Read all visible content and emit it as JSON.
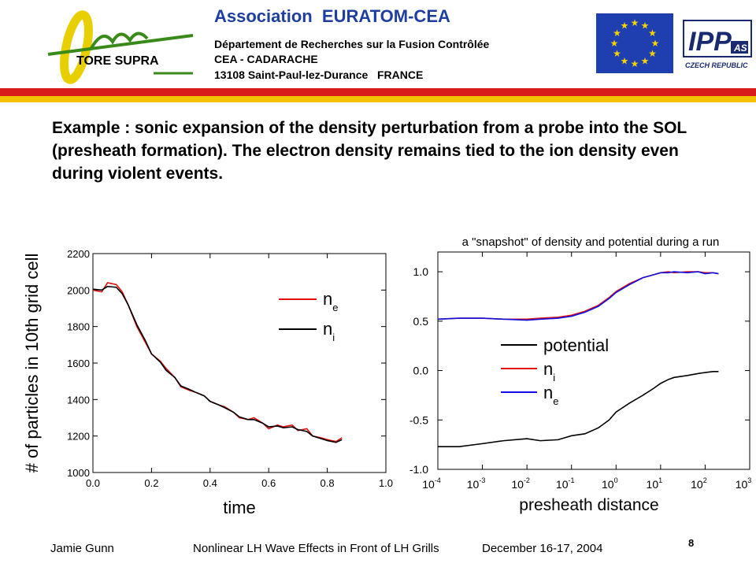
{
  "header": {
    "logo_text": "TORE SUPRA",
    "title": "Association  EURATOM-CEA",
    "line1": "Département de Recherches sur la Fusion Contrôlée",
    "line2": "CEA - CADARACHE",
    "line3": "13108 Saint-Paul-lez-Durance   FRANCE",
    "ipp_logo": "IPP",
    "ipp_sub": "AS",
    "ipp_country": "CZECH REPUBLIC"
  },
  "headline": "Example : sonic expansion of the density perturbation from a probe into the SOL (presheath formation). The electron density remains tied to the ion density even during violent events.",
  "footer": {
    "author": "Jamie Gunn",
    "talk": "Nonlinear LH Wave Effects in Front of LH Grills",
    "date": "December 16-17, 2004",
    "page": "8"
  },
  "colors": {
    "red": "#e01010",
    "black": "#000000",
    "blue": "#1010e0",
    "stripe_red": "#d81c1c",
    "stripe_yellow": "#f2c200",
    "header_blue": "#1f3f9f",
    "logo_green": "#3a8a1a",
    "logo_yellow": "#e8d000"
  },
  "chart_data": [
    {
      "type": "line",
      "xlabel": "time",
      "ylabel": "# of particles in 10th grid cell",
      "xlim": [
        0.0,
        1.0
      ],
      "ylim": [
        1000,
        2200
      ],
      "xticks": [
        "0.0",
        "0.2",
        "0.4",
        "0.6",
        "0.8",
        "1.0"
      ],
      "yticks": [
        "1000",
        "1200",
        "1400",
        "1600",
        "1800",
        "2000",
        "2200"
      ],
      "legend_position": "top-right",
      "series": [
        {
          "name": "n",
          "subscript": "e",
          "color": "red",
          "x": [
            0.0,
            0.03,
            0.05,
            0.08,
            0.1,
            0.12,
            0.15,
            0.18,
            0.2,
            0.23,
            0.25,
            0.28,
            0.3,
            0.33,
            0.35,
            0.38,
            0.4,
            0.43,
            0.45,
            0.48,
            0.5,
            0.53,
            0.55,
            0.58,
            0.6,
            0.63,
            0.65,
            0.68,
            0.7,
            0.73,
            0.75,
            0.78,
            0.8,
            0.83,
            0.85
          ],
          "y": [
            2000,
            1990,
            2040,
            2030,
            1990,
            1920,
            1800,
            1710,
            1650,
            1610,
            1570,
            1520,
            1470,
            1450,
            1440,
            1420,
            1390,
            1370,
            1360,
            1330,
            1300,
            1290,
            1300,
            1270,
            1240,
            1260,
            1250,
            1260,
            1230,
            1240,
            1200,
            1190,
            1180,
            1170,
            1190
          ]
        },
        {
          "name": "n",
          "subscript": "i",
          "color": "black",
          "x": [
            0.0,
            0.03,
            0.05,
            0.08,
            0.1,
            0.12,
            0.15,
            0.18,
            0.2,
            0.23,
            0.25,
            0.28,
            0.3,
            0.33,
            0.35,
            0.38,
            0.4,
            0.43,
            0.45,
            0.48,
            0.5,
            0.53,
            0.55,
            0.58,
            0.6,
            0.63,
            0.65,
            0.68,
            0.7,
            0.73,
            0.75,
            0.78,
            0.8,
            0.83,
            0.85
          ],
          "y": [
            2005,
            2000,
            2020,
            2015,
            1980,
            1920,
            1810,
            1720,
            1650,
            1605,
            1560,
            1520,
            1475,
            1455,
            1440,
            1420,
            1390,
            1370,
            1355,
            1330,
            1305,
            1290,
            1290,
            1270,
            1250,
            1255,
            1245,
            1250,
            1235,
            1225,
            1200,
            1185,
            1175,
            1165,
            1180
          ]
        }
      ]
    },
    {
      "type": "line",
      "title": "a \"snapshot\" of density and potential during a run",
      "xlabel": "presheath distance",
      "ylabel": "",
      "x_scale": "log",
      "xlim": [
        0.0001,
        1000
      ],
      "ylim": [
        -1.0,
        1.2
      ],
      "xticks": [
        {
          "base": "10",
          "exp": "-4"
        },
        {
          "base": "10",
          "exp": "-3"
        },
        {
          "base": "10",
          "exp": "-2"
        },
        {
          "base": "10",
          "exp": "-1"
        },
        {
          "base": "10",
          "exp": "0"
        },
        {
          "base": "10",
          "exp": "1"
        },
        {
          "base": "10",
          "exp": "2"
        },
        {
          "base": "10",
          "exp": "3"
        }
      ],
      "yticks": [
        "-1.0",
        "-0.5",
        "0.0",
        "0.5",
        "1.0"
      ],
      "legend_position": "center",
      "series": [
        {
          "name": "potential",
          "color": "black",
          "x": [
            0.0001,
            0.0003,
            0.001,
            0.003,
            0.01,
            0.02,
            0.05,
            0.1,
            0.2,
            0.4,
            0.7,
            1,
            2,
            4,
            7,
            10,
            15,
            20,
            40,
            70,
            100,
            150,
            200
          ],
          "y": [
            -0.77,
            -0.77,
            -0.74,
            -0.71,
            -0.69,
            -0.71,
            -0.7,
            -0.66,
            -0.64,
            -0.58,
            -0.5,
            -0.42,
            -0.33,
            -0.25,
            -0.18,
            -0.13,
            -0.09,
            -0.07,
            -0.05,
            -0.03,
            -0.02,
            -0.01,
            -0.01
          ]
        },
        {
          "name": "n",
          "subscript": "i",
          "color": "red",
          "x": [
            0.0001,
            0.0003,
            0.001,
            0.003,
            0.01,
            0.02,
            0.05,
            0.1,
            0.2,
            0.4,
            0.7,
            1,
            2,
            4,
            7,
            10,
            15,
            20,
            40,
            70,
            100,
            150,
            200
          ],
          "y": [
            0.52,
            0.53,
            0.53,
            0.52,
            0.52,
            0.53,
            0.54,
            0.56,
            0.6,
            0.66,
            0.74,
            0.8,
            0.88,
            0.94,
            0.97,
            0.99,
            1.0,
            0.99,
            1.0,
            1.0,
            0.99,
            0.99,
            0.98
          ]
        },
        {
          "name": "n",
          "subscript": "e",
          "color": "blue",
          "x": [
            0.0001,
            0.0003,
            0.001,
            0.003,
            0.01,
            0.02,
            0.05,
            0.1,
            0.2,
            0.4,
            0.7,
            1,
            2,
            4,
            7,
            10,
            15,
            20,
            40,
            70,
            100,
            150,
            200
          ],
          "y": [
            0.52,
            0.53,
            0.53,
            0.52,
            0.51,
            0.52,
            0.53,
            0.55,
            0.59,
            0.65,
            0.73,
            0.79,
            0.87,
            0.94,
            0.97,
            0.99,
            0.99,
            1.0,
            0.99,
            1.0,
            0.98,
            0.99,
            0.98
          ]
        }
      ]
    }
  ]
}
